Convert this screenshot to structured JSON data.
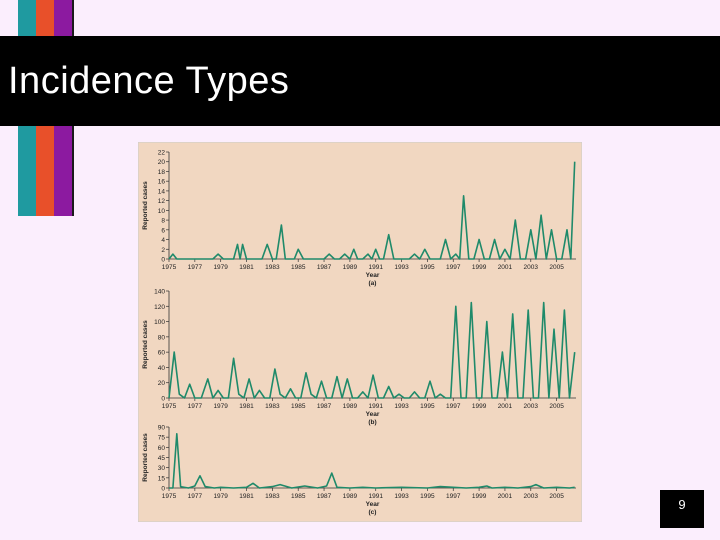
{
  "slide": {
    "title": "Incidence Types",
    "page_number": "9",
    "colors": {
      "background": "#fbeefd",
      "title_bar": "#000000",
      "accent_teal": "#1f9aa0",
      "accent_orange": "#e8502a",
      "accent_purple": "#8c1aa0",
      "figure_bg": "#f1d7c1",
      "line": "#1f8a6a"
    }
  },
  "chart_data": [
    {
      "type": "line",
      "panel_label": "(a)",
      "ylabel": "Reported cases",
      "xlabel": "Year",
      "ylim": [
        0,
        22
      ],
      "yticks": [
        0,
        2,
        4,
        6,
        8,
        10,
        12,
        14,
        16,
        18,
        20,
        22
      ],
      "xlim": [
        1975,
        2006.5
      ],
      "xticks": [
        "1975",
        "1977",
        "1979",
        "1981",
        "1983",
        "1985",
        "1987",
        "1989",
        "1991",
        "1993",
        "1995",
        "1997",
        "1999",
        "2001",
        "2003",
        "2005"
      ],
      "x": [
        1975,
        1975.3,
        1975.6,
        1976,
        1976.5,
        1977,
        1977.5,
        1978,
        1978.4,
        1978.8,
        1979.2,
        1979.6,
        1980,
        1980.3,
        1980.5,
        1980.7,
        1981,
        1981.4,
        1981.8,
        1982.2,
        1982.6,
        1983,
        1983.3,
        1983.7,
        1984,
        1984.4,
        1984.7,
        1985,
        1985.4,
        1985.8,
        1986.2,
        1986.6,
        1987,
        1987.4,
        1987.8,
        1988.2,
        1988.6,
        1989,
        1989.3,
        1989.6,
        1990,
        1990.4,
        1990.7,
        1991,
        1991.3,
        1991.6,
        1992,
        1992.4,
        1992.8,
        1993.2,
        1993.6,
        1994,
        1994.4,
        1994.8,
        1995.2,
        1995.6,
        1996,
        1996.4,
        1996.8,
        1997.2,
        1997.5,
        1997.8,
        1998.2,
        1998.6,
        1999,
        1999.4,
        1999.8,
        2000.2,
        2000.6,
        2001,
        2001.4,
        2001.8,
        2002.2,
        2002.6,
        2003,
        2003.4,
        2003.8,
        2004.2,
        2004.6,
        2005,
        2005.4,
        2005.8,
        2006.1,
        2006.4
      ],
      "y": [
        0,
        1,
        0,
        0,
        0,
        0,
        0,
        0,
        0,
        1,
        0,
        0,
        0,
        3,
        0,
        3,
        0,
        0,
        0,
        0,
        3,
        0,
        0,
        7,
        0,
        0,
        0,
        2,
        0,
        0,
        0,
        0,
        0,
        1,
        0,
        0,
        1,
        0,
        2,
        0,
        0,
        1,
        0,
        2,
        0,
        0,
        5,
        0,
        0,
        0,
        0,
        1,
        0,
        2,
        0,
        0,
        0,
        4,
        0,
        1,
        0,
        13,
        0,
        0,
        4,
        0,
        0,
        4,
        0,
        2,
        0,
        8,
        0,
        0,
        6,
        0,
        9,
        0,
        6,
        0,
        0,
        6,
        0,
        20
      ]
    },
    {
      "type": "line",
      "panel_label": "(b)",
      "ylabel": "Reported cases",
      "xlabel": "Year",
      "ylim": [
        0,
        140
      ],
      "yticks": [
        0,
        20,
        40,
        60,
        80,
        100,
        120,
        140
      ],
      "xlim": [
        1975,
        2006.5
      ],
      "xticks": [
        "1975",
        "1977",
        "1979",
        "1981",
        "1983",
        "1985",
        "1987",
        "1989",
        "1991",
        "1993",
        "1995",
        "1997",
        "1999",
        "2001",
        "2003",
        "2005"
      ],
      "x": [
        1975,
        1975.4,
        1975.8,
        1976.2,
        1976.6,
        1977,
        1977.5,
        1978,
        1978.4,
        1978.8,
        1979.2,
        1979.6,
        1980,
        1980.4,
        1980.8,
        1981.2,
        1981.6,
        1982,
        1982.4,
        1982.8,
        1983.2,
        1983.6,
        1984,
        1984.4,
        1984.8,
        1985.2,
        1985.6,
        1986,
        1986.4,
        1986.8,
        1987.2,
        1987.6,
        1988,
        1988.4,
        1988.8,
        1989.2,
        1989.6,
        1990,
        1990.4,
        1990.8,
        1991.2,
        1991.6,
        1992,
        1992.4,
        1992.8,
        1993.2,
        1993.6,
        1994,
        1994.4,
        1994.8,
        1995.2,
        1995.6,
        1996,
        1996.4,
        1996.8,
        1997.2,
        1997.6,
        1998,
        1998.4,
        1998.8,
        1999.2,
        1999.6,
        2000,
        2000.4,
        2000.8,
        2001.2,
        2001.6,
        2002,
        2002.4,
        2002.8,
        2003.2,
        2003.6,
        2004,
        2004.4,
        2004.8,
        2005.2,
        2005.6,
        2006,
        2006.4
      ],
      "y": [
        0,
        60,
        5,
        0,
        18,
        0,
        0,
        25,
        0,
        10,
        0,
        0,
        52,
        5,
        0,
        25,
        0,
        10,
        0,
        0,
        38,
        5,
        0,
        12,
        0,
        0,
        33,
        5,
        0,
        22,
        0,
        0,
        28,
        0,
        25,
        0,
        0,
        8,
        0,
        30,
        0,
        0,
        15,
        0,
        5,
        0,
        0,
        8,
        0,
        0,
        22,
        0,
        5,
        0,
        0,
        120,
        0,
        0,
        125,
        0,
        0,
        100,
        0,
        0,
        60,
        0,
        110,
        0,
        0,
        115,
        0,
        0,
        125,
        0,
        90,
        0,
        115,
        0,
        60
      ]
    },
    {
      "type": "line",
      "panel_label": "(c)",
      "ylabel": "Reported cases",
      "xlabel": "Year",
      "ylim": [
        0,
        90
      ],
      "yticks": [
        0,
        15,
        30,
        45,
        60,
        75,
        90
      ],
      "xlim": [
        1975,
        2006.5
      ],
      "xticks": [
        "1975",
        "1977",
        "1979",
        "1981",
        "1983",
        "1985",
        "1987",
        "1989",
        "1991",
        "1993",
        "1995",
        "1997",
        "1999",
        "2001",
        "2003",
        "2005"
      ],
      "x": [
        1975,
        1975.3,
        1975.6,
        1975.9,
        1976.5,
        1977,
        1977.4,
        1977.8,
        1978.5,
        1979,
        1980,
        1981,
        1981.5,
        1982,
        1983,
        1983.6,
        1984.5,
        1985.5,
        1986.5,
        1987.2,
        1987.6,
        1988,
        1989,
        1990,
        1991,
        1993,
        1995,
        1996,
        1997,
        1998,
        1999,
        1999.6,
        2000,
        2001,
        2002,
        2003,
        2003.4,
        2004,
        2005,
        2006,
        2006.4
      ],
      "y": [
        0,
        0,
        80,
        2,
        0,
        3,
        18,
        2,
        0,
        1,
        0,
        1,
        7,
        0,
        2,
        5,
        0,
        3,
        0,
        3,
        22,
        1,
        0,
        1,
        0,
        1,
        0,
        2,
        1,
        0,
        1,
        3,
        0,
        1,
        0,
        2,
        5,
        0,
        1,
        0,
        1
      ]
    }
  ]
}
